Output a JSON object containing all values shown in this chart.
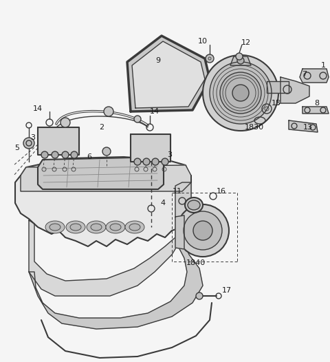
{
  "bg_color": "#f5f5f5",
  "line_color": "#3a3a3a",
  "label_color": "#1a1a1a",
  "fig_w": 4.8,
  "fig_h": 5.26,
  "dpi": 100
}
